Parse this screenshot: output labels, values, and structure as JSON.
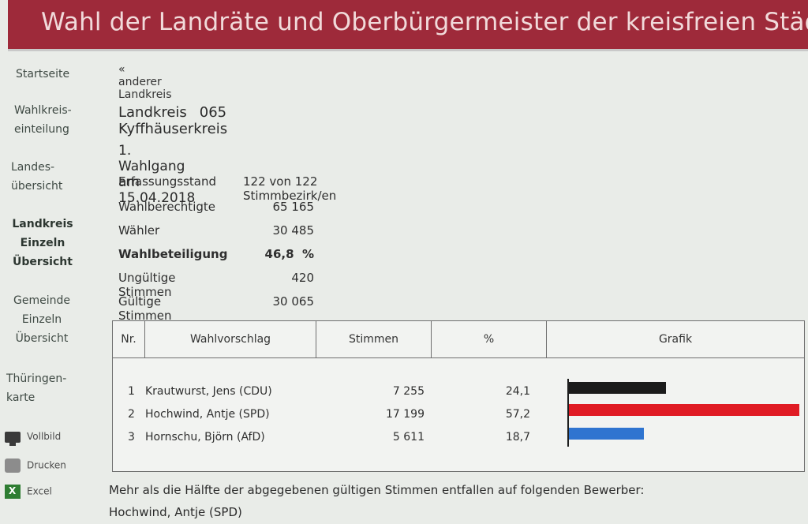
{
  "header": {
    "title": "Wahl der Landräte und Oberbürgermeister der kreisfreien Städ"
  },
  "sidebar": {
    "items": [
      {
        "lines": [
          "Startseite"
        ]
      },
      {
        "lines": [
          "Wahlkreis-",
          "einteilung"
        ]
      },
      {
        "lines": [
          "Landes-",
          "übersicht"
        ]
      },
      {
        "lines": [
          "Landkreis",
          "Einzeln",
          "Übersicht"
        ]
      },
      {
        "lines": [
          "Gemeinde",
          "Einzeln",
          "Übersicht"
        ]
      },
      {
        "lines": [
          "Thüringen-",
          "karte"
        ]
      }
    ],
    "tools": [
      {
        "label": "Vollbild",
        "icon": "monitor-icon"
      },
      {
        "label": "Drucken",
        "icon": "printer-icon"
      },
      {
        "label": "Excel",
        "icon": "excel-icon"
      }
    ]
  },
  "main": {
    "back_link": "« anderer Landkreis",
    "kreis_label": "Landkreis",
    "kreis_name": "065 Kyffhäuserkreis",
    "wahlgang": "1. Wahlgang am 15.04.2018",
    "stats": [
      {
        "label": "Erfassungsstand",
        "value": "122 von 122 Stimmbezirk/en"
      },
      {
        "label": "Wahlberechtigte",
        "value": "65 165"
      },
      {
        "label": "Wähler",
        "value": "30 485"
      },
      {
        "label": "Wahlbeteiligung",
        "value": "46,8  %"
      },
      {
        "label": "Ungültige Stimmen",
        "value": "420"
      },
      {
        "label": "Gültige Stimmen",
        "value": "30 065"
      }
    ],
    "table": {
      "headers": [
        "Nr.",
        "Wahlvorschlag",
        "Stimmen",
        "%",
        "Grafik"
      ],
      "rows": [
        {
          "nr": "1",
          "name": "Krautwurst, Jens (CDU)",
          "stimmen": "7 255",
          "pct": "24,1",
          "pct_value": 24.1,
          "color": "#1b1b1b"
        },
        {
          "nr": "2",
          "name": "Hochwind, Antje (SPD)",
          "stimmen": "17 199",
          "pct": "57,2",
          "pct_value": 57.2,
          "color": "#e01b24"
        },
        {
          "nr": "3",
          "name": "Hornschu, Björn (AfD)",
          "stimmen": "5 611",
          "pct": "18,7",
          "pct_value": 18.7,
          "color": "#2f74d0"
        }
      ]
    },
    "footer_line1": "Mehr als die Hälfte der abgegebenen gültigen Stimmen entfallen auf folgenden Bewerber:",
    "footer_line2": "Hochwind, Antje (SPD)"
  }
}
